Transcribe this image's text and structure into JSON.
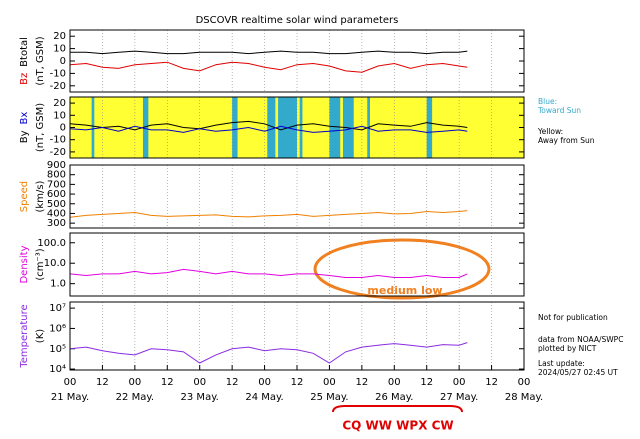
{
  "title": "DSCOVR realtime solar wind parameters",
  "xlim": [
    0,
    168
  ],
  "xticks": [
    {
      "value": 0,
      "label": "00"
    },
    {
      "value": 12,
      "label": "12"
    },
    {
      "value": 24,
      "label": "00"
    },
    {
      "value": 36,
      "label": "12"
    },
    {
      "value": 48,
      "label": "00"
    },
    {
      "value": 60,
      "label": "12"
    },
    {
      "value": 72,
      "label": "00"
    },
    {
      "value": 84,
      "label": "12"
    },
    {
      "value": 96,
      "label": "00"
    },
    {
      "value": 108,
      "label": "12"
    },
    {
      "value": 120,
      "label": "00"
    },
    {
      "value": 132,
      "label": "12"
    },
    {
      "value": 144,
      "label": "00"
    },
    {
      "value": 156,
      "label": "12"
    },
    {
      "value": 168,
      "label": "00"
    }
  ],
  "day_labels": [
    {
      "value": 0,
      "label": "21 May."
    },
    {
      "value": 24,
      "label": "22 May."
    },
    {
      "value": 48,
      "label": "23 May."
    },
    {
      "value": 72,
      "label": "24 May."
    },
    {
      "value": 96,
      "label": "25 May."
    },
    {
      "value": 120,
      "label": "26 May."
    },
    {
      "value": 144,
      "label": "27 May."
    },
    {
      "value": 168,
      "label": "28 May."
    }
  ],
  "grid": true,
  "chart_data": [
    {
      "type": "line",
      "ylabel_unit": "(nT, GSM)",
      "ylim": [
        -25,
        25
      ],
      "yticks": [
        -20,
        -10,
        0,
        10,
        20
      ],
      "x": [
        0,
        6,
        12,
        18,
        24,
        30,
        36,
        42,
        48,
        54,
        60,
        66,
        72,
        78,
        84,
        90,
        96,
        102,
        108,
        114,
        120,
        126,
        132,
        138,
        144,
        147
      ],
      "series": [
        {
          "name": "Bz",
          "color": "#e00000",
          "values": [
            -3,
            -2,
            -5,
            -6,
            -3,
            -2,
            -1,
            -6,
            -8,
            -3,
            -1,
            -2,
            -5,
            -7,
            -3,
            -2,
            -4,
            -8,
            -9,
            -4,
            -2,
            -6,
            -3,
            -2,
            -4,
            -5
          ]
        },
        {
          "name": "Btotal",
          "color": "#000000",
          "values": [
            7,
            7,
            6,
            7,
            8,
            7,
            6,
            6,
            7,
            7,
            7,
            6,
            7,
            8,
            7,
            7,
            6,
            6,
            7,
            8,
            7,
            7,
            6,
            7,
            7,
            8
          ]
        }
      ]
    },
    {
      "type": "line",
      "ylabel_unit": "(nT, GSM)",
      "ylim": [
        -25,
        25
      ],
      "yticks": [
        -20,
        -10,
        0,
        10,
        20
      ],
      "background": "#ffff33",
      "band_color": "#33aacc",
      "band_legend": [
        {
          "label": "Blue:",
          "label2": "Toward Sun",
          "color": "#33aacc"
        },
        {
          "label": "Yellow:",
          "label2": "Away from Sun",
          "color": "#000000"
        }
      ],
      "toward_sun_intervals": [
        [
          8,
          9
        ],
        [
          27,
          29
        ],
        [
          60,
          62
        ],
        [
          73,
          76
        ],
        [
          77,
          84
        ],
        [
          85,
          86
        ],
        [
          96,
          100
        ],
        [
          101,
          105
        ],
        [
          110,
          111
        ],
        [
          132,
          134
        ]
      ],
      "x": [
        0,
        6,
        12,
        18,
        24,
        30,
        36,
        42,
        48,
        54,
        60,
        66,
        72,
        78,
        84,
        90,
        96,
        102,
        108,
        114,
        120,
        126,
        132,
        138,
        144,
        147
      ],
      "series": [
        {
          "name": "By",
          "color": "#000000",
          "values": [
            3,
            2,
            0,
            1,
            -2,
            2,
            3,
            0,
            -1,
            2,
            4,
            5,
            3,
            -2,
            2,
            3,
            1,
            0,
            -2,
            3,
            2,
            1,
            4,
            2,
            1,
            0
          ]
        },
        {
          "name": "Bx",
          "color": "#0000cc",
          "values": [
            -1,
            -2,
            0,
            -3,
            1,
            -2,
            -2,
            -4,
            -1,
            -3,
            -2,
            0,
            -3,
            1,
            -2,
            -4,
            -3,
            -2,
            1,
            -3,
            -2,
            -2,
            -4,
            -3,
            -2,
            -3
          ]
        }
      ]
    },
    {
      "type": "line",
      "ylabel_unit": "(km/s)",
      "ylim": [
        250,
        900
      ],
      "yticks": [
        300,
        400,
        500,
        600,
        700,
        800,
        900
      ],
      "x": [
        0,
        6,
        12,
        18,
        24,
        30,
        36,
        42,
        48,
        54,
        60,
        66,
        72,
        78,
        84,
        90,
        96,
        102,
        108,
        114,
        120,
        126,
        132,
        138,
        144,
        147
      ],
      "series": [
        {
          "name": "Speed",
          "color": "#f08000",
          "values": [
            360,
            380,
            390,
            400,
            410,
            380,
            370,
            375,
            380,
            385,
            370,
            365,
            375,
            380,
            390,
            370,
            380,
            390,
            400,
            410,
            395,
            400,
            420,
            410,
            420,
            430
          ]
        }
      ]
    },
    {
      "type": "line",
      "log": true,
      "ylabel_unit": "(cm⁻³)",
      "ylim": [
        0.25,
        300
      ],
      "yticks": [
        {
          "value": 1,
          "label": "1.0"
        },
        {
          "value": 10,
          "label": "10.0"
        },
        {
          "value": 100,
          "label": "100.0"
        }
      ],
      "x": [
        0,
        6,
        12,
        18,
        24,
        30,
        36,
        42,
        48,
        54,
        60,
        66,
        72,
        78,
        84,
        90,
        96,
        102,
        108,
        114,
        120,
        126,
        132,
        138,
        144,
        147
      ],
      "series": [
        {
          "name": "Density",
          "color": "#e000e0",
          "values": [
            3,
            2.5,
            3,
            3,
            4,
            3,
            3.5,
            5,
            4,
            3,
            4,
            3,
            3,
            2.5,
            3,
            3,
            2.5,
            2,
            2,
            2.5,
            2,
            2,
            2.5,
            2,
            2,
            3
          ]
        }
      ]
    },
    {
      "type": "line",
      "log": true,
      "ylabel_unit": "(K)",
      "ylim": [
        9000,
        20000000
      ],
      "yticks": [
        {
          "value": 10000,
          "label": "10⁴"
        },
        {
          "value": 100000,
          "label": "10⁵"
        },
        {
          "value": 1000000,
          "label": "10⁶"
        },
        {
          "value": 10000000,
          "label": "10⁷"
        }
      ],
      "x": [
        0,
        6,
        12,
        18,
        24,
        30,
        36,
        42,
        48,
        54,
        60,
        66,
        72,
        78,
        84,
        90,
        96,
        102,
        108,
        114,
        120,
        126,
        132,
        138,
        144,
        147
      ],
      "series": [
        {
          "name": "Temperature",
          "color": "#8a2be2",
          "values": [
            100000,
            120000,
            80000,
            60000,
            50000,
            100000,
            90000,
            70000,
            20000,
            50000,
            100000,
            120000,
            80000,
            100000,
            90000,
            60000,
            20000,
            70000,
            120000,
            150000,
            180000,
            150000,
            120000,
            160000,
            150000,
            200000
          ]
        }
      ]
    }
  ],
  "notes": [
    "Not for publication",
    "data from NOAA/SWPC",
    "plotted by NICT",
    "Last update:",
    "2024/05/27 02:45 UT"
  ],
  "annotations": {
    "ellipse_label": "medium low",
    "contest": "CQ WW WPX CW"
  }
}
